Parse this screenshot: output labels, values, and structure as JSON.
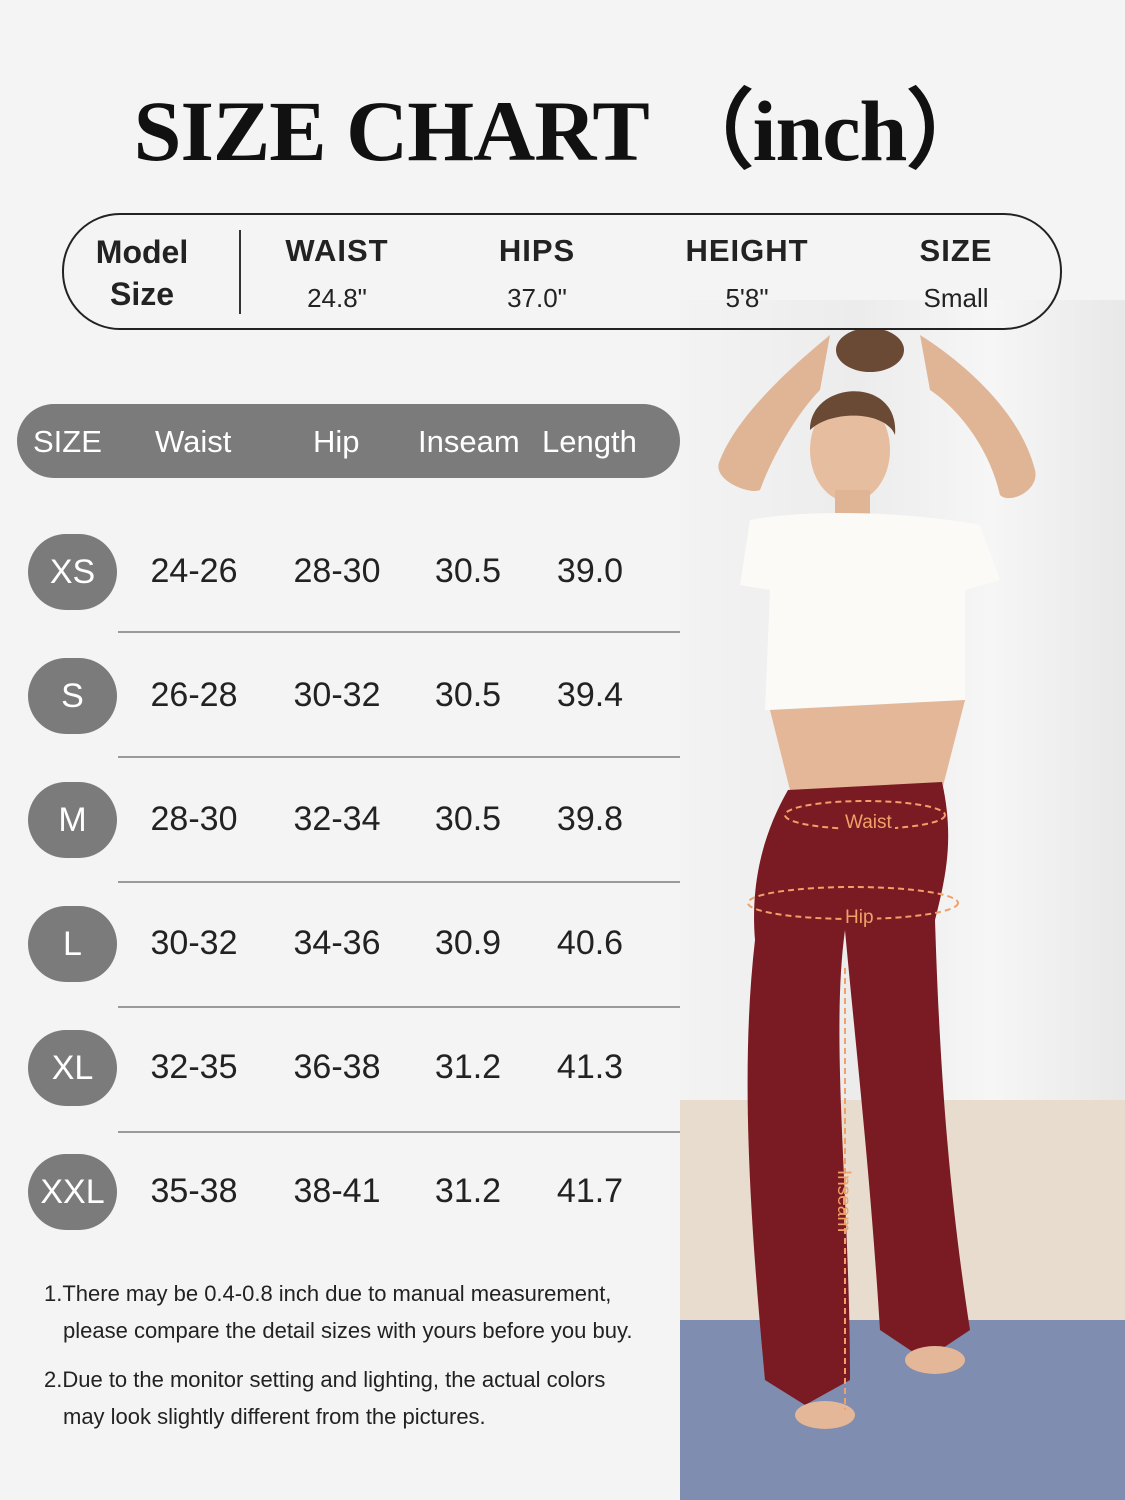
{
  "title": "SIZE CHART （inch）",
  "model": {
    "label": "Model Size",
    "columns": [
      {
        "header": "WAIST",
        "value": "24.8\""
      },
      {
        "header": "HIPS",
        "value": "37.0\""
      },
      {
        "header": "HEIGHT",
        "value": "5'8\""
      },
      {
        "header": "SIZE",
        "value": "Small"
      }
    ]
  },
  "table": {
    "headers": [
      "SIZE",
      "Waist",
      "Hip",
      "Inseam",
      "Length"
    ],
    "rows": [
      {
        "size": "XS",
        "waist": "24-26",
        "hip": "28-30",
        "inseam": "30.5",
        "length": "39.0"
      },
      {
        "size": "S",
        "waist": "26-28",
        "hip": "30-32",
        "inseam": "30.5",
        "length": "39.4"
      },
      {
        "size": "M",
        "waist": "28-30",
        "hip": "32-34",
        "inseam": "30.5",
        "length": "39.8"
      },
      {
        "size": "L",
        "waist": "30-32",
        "hip": "34-36",
        "inseam": "30.9",
        "length": "40.6"
      },
      {
        "size": "XL",
        "waist": "32-35",
        "hip": "36-38",
        "inseam": "31.2",
        "length": "41.3"
      },
      {
        "size": "XXL",
        "waist": "35-38",
        "hip": "38-41",
        "inseam": "31.2",
        "length": "41.7"
      }
    ]
  },
  "notes": [
    {
      "line1": "1.There may be 0.4-0.8 inch due to manual measurement,",
      "line2": "please compare the detail sizes with yours before you buy."
    },
    {
      "line1": "2.Due to the monitor setting and lighting, the actual colors",
      "line2": "may look slightly different from the pictures."
    }
  ],
  "photo": {
    "labels": {
      "waist": "Waist",
      "hip": "Hip",
      "inseam": "Inseam"
    },
    "colors": {
      "pants": "#7a1a22",
      "measure": "#f1a168",
      "header": "#7b7b7b"
    }
  }
}
